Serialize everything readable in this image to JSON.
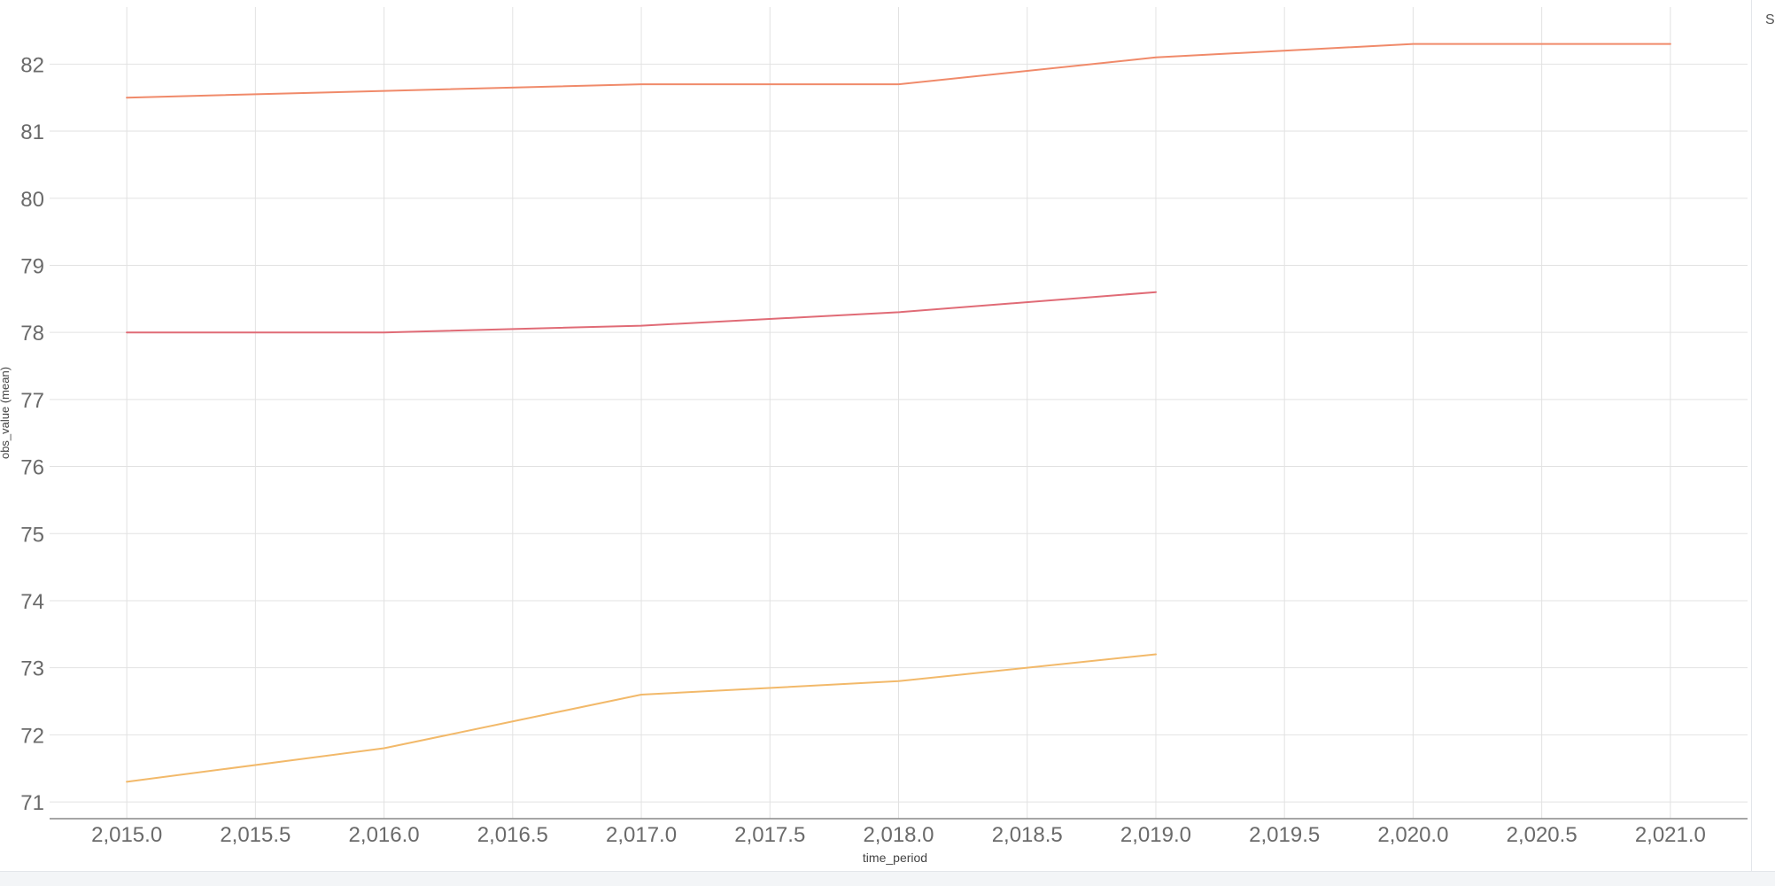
{
  "chart_data": {
    "type": "line",
    "title": "",
    "xlabel": "time_period",
    "ylabel": "obs_value (mean)",
    "xlim": [
      2014.7,
      2021.3
    ],
    "ylim": [
      70.75,
      82.85
    ],
    "x_ticks": [
      2015.0,
      2015.5,
      2016.0,
      2016.5,
      2017.0,
      2017.5,
      2018.0,
      2018.5,
      2019.0,
      2019.5,
      2020.0,
      2020.5,
      2021.0
    ],
    "x_tick_labels": [
      "2,015.0",
      "2,015.5",
      "2,016.0",
      "2,016.5",
      "2,017.0",
      "2,017.5",
      "2,018.0",
      "2,018.5",
      "2,019.0",
      "2,019.5",
      "2,020.0",
      "2,020.5",
      "2,021.0"
    ],
    "y_ticks": [
      71,
      72,
      73,
      74,
      75,
      76,
      77,
      78,
      79,
      80,
      81,
      82
    ],
    "y_tick_labels": [
      "71",
      "72",
      "73",
      "74",
      "75",
      "76",
      "77",
      "78",
      "79",
      "80",
      "81",
      "82"
    ],
    "grid": true,
    "series": [
      {
        "color": "#f08a6a",
        "x": [
          2015,
          2016,
          2017,
          2018,
          2019,
          2020,
          2021
        ],
        "y": [
          81.5,
          81.6,
          81.7,
          81.7,
          82.1,
          82.3,
          82.3
        ]
      },
      {
        "color": "#e06b76",
        "x": [
          2015,
          2016,
          2017,
          2018,
          2019
        ],
        "y": [
          78.0,
          78.0,
          78.1,
          78.3,
          78.6
        ]
      },
      {
        "color": "#f2b96a",
        "x": [
          2015,
          2016,
          2017,
          2018,
          2019
        ],
        "y": [
          71.3,
          71.8,
          72.6,
          72.8,
          73.2
        ]
      }
    ]
  },
  "colors": {
    "grid": "#e2e2e2",
    "axis": "#888888",
    "tick_text": "#6a6a6a"
  },
  "edge_glyph": "S"
}
